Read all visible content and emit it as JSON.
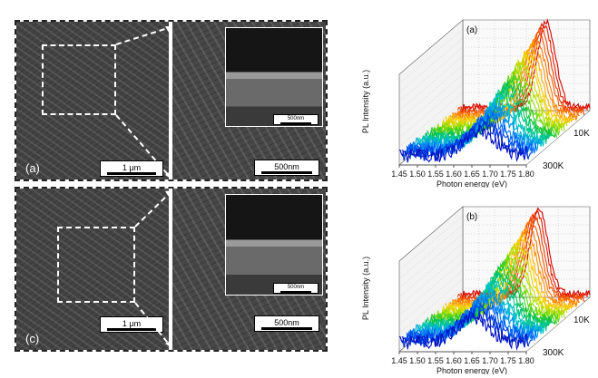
{
  "sem_top": {
    "label": "(a)",
    "scalebar_main": "1 μm",
    "scalebar_zoom": "500nm",
    "scalebar_inset": "500nm"
  },
  "sem_bottom": {
    "label": "(c)",
    "scalebar_main": "1 μm",
    "scalebar_zoom": "500nm",
    "scalebar_inset": "500nm"
  },
  "chart_data": [
    {
      "type": "line",
      "panel_label": "(a)",
      "xlabel": "Photon energy (eV)",
      "ylabel": "PL Intensity (a.u.)",
      "x_ticks": [
        "1.45",
        "1.50",
        "1.55",
        "1.60",
        "1.65",
        "1.70",
        "1.75",
        "1.80"
      ],
      "depth_labels": [
        "10K",
        "300K"
      ],
      "xlim": [
        1.45,
        1.8
      ],
      "peak_energy_eV": 1.68,
      "colors": [
        "#d40000",
        "#ff6a00",
        "#ffd000",
        "#9be000",
        "#00c040",
        "#00c8c8",
        "#0070ff",
        "#0010c0"
      ]
    },
    {
      "type": "line",
      "panel_label": "(b)",
      "xlabel": "Photon energy (eV)",
      "ylabel": "PL Intensity (a.u.)",
      "x_ticks": [
        "1.45",
        "1.50",
        "1.55",
        "1.60",
        "1.65",
        "1.70",
        "1.75",
        "1.80"
      ],
      "depth_labels": [
        "10K",
        "300K"
      ],
      "xlim": [
        1.45,
        1.8
      ],
      "peak_energy_eV": 1.66,
      "colors": [
        "#d40000",
        "#ff6a00",
        "#ffd000",
        "#9be000",
        "#00c040",
        "#00c8c8",
        "#0070ff",
        "#0010c0"
      ]
    }
  ]
}
